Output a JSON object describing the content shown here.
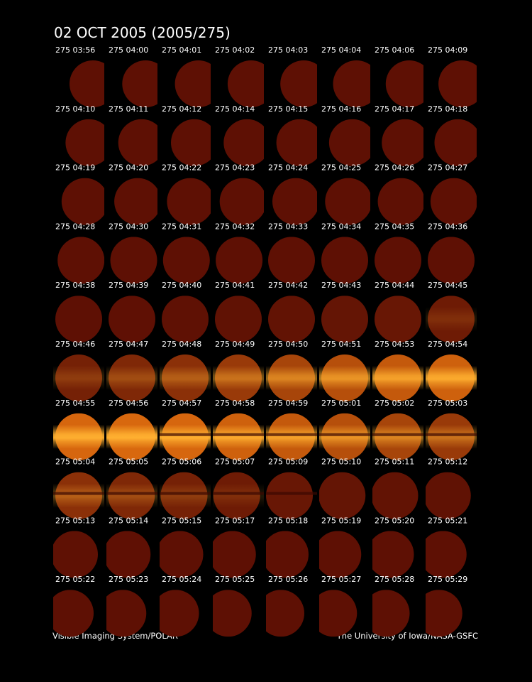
{
  "header": {
    "title": "02 OCT 2005  (2005/275)"
  },
  "frames": [
    "275 03:56",
    "275 04:00",
    "275 04:01",
    "275 04:02",
    "275 04:03",
    "275 04:04",
    "275 04:06",
    "275 04:09",
    "275 04:10",
    "275 04:11",
    "275 04:12",
    "275 04:14",
    "275 04:15",
    "275 04:16",
    "275 04:17",
    "275 04:18",
    "275 04:19",
    "275 04:20",
    "275 04:22",
    "275 04:23",
    "275 04:24",
    "275 04:25",
    "275 04:26",
    "275 04:27",
    "275 04:28",
    "275 04:30",
    "275 04:31",
    "275 04:32",
    "275 04:33",
    "275 04:34",
    "275 04:35",
    "275 04:36",
    "275 04:38",
    "275 04:39",
    "275 04:40",
    "275 04:41",
    "275 04:42",
    "275 04:43",
    "275 04:44",
    "275 04:45",
    "275 04:46",
    "275 04:47",
    "275 04:48",
    "275 04:49",
    "275 04:50",
    "275 04:51",
    "275 04:53",
    "275 04:54",
    "275 04:55",
    "275 04:56",
    "275 04:57",
    "275 04:58",
    "275 04:59",
    "275 05:01",
    "275 05:02",
    "275 05:03",
    "275 05:04",
    "275 05:05",
    "275 05:06",
    "275 05:07",
    "275 05:09",
    "275 05:10",
    "275 05:11",
    "275 05:12",
    "275 05:13",
    "275 05:14",
    "275 05:15",
    "275 05:17",
    "275 05:18",
    "275 05:19",
    "275 05:20",
    "275 05:21",
    "275 05:22",
    "275 05:23",
    "275 05:24",
    "275 05:25",
    "275 05:26",
    "275 05:27",
    "275 05:28",
    "275 05:29"
  ],
  "footer": {
    "left": "Visible Imaging System/POLAR",
    "right": "The University of Iowa/NASA-GSFC"
  }
}
